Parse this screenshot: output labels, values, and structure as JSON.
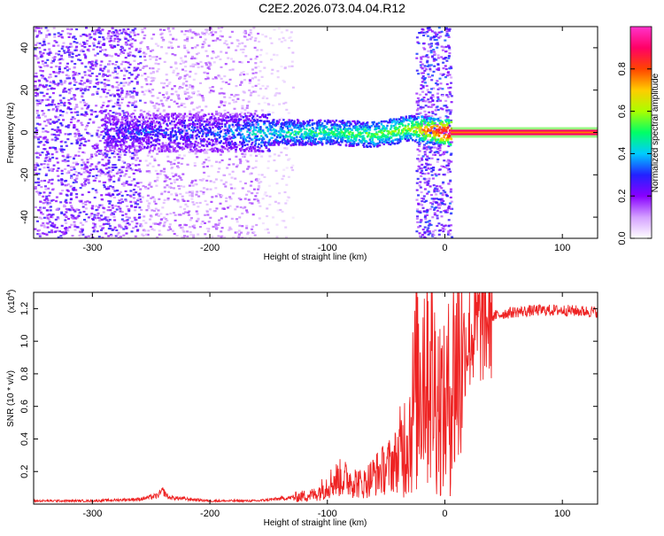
{
  "title": "C2E2.2026.073.04.04.R12",
  "chart_data": [
    {
      "type": "heatmap",
      "panel": "spectrogram",
      "xlabel": "Height of straight line (km)",
      "ylabel": "Frequency (Hz)",
      "xlim": [
        -350,
        130
      ],
      "ylim": [
        -50,
        50
      ],
      "xticks": [
        -300,
        -200,
        -100,
        0,
        100
      ],
      "yticks": [
        -40,
        -20,
        0,
        20,
        40
      ],
      "colorbar": {
        "label": "Normalized spectral amplitude",
        "range": [
          0.0,
          1.0
        ],
        "ticks": [
          "0.0",
          "0.2",
          "0.4",
          "0.6",
          "0.8"
        ],
        "colors": [
          "#ffffff",
          "#d4a0ff",
          "#8800ff",
          "#2222ff",
          "#00ccff",
          "#00ff66",
          "#aaff00",
          "#ffcc00",
          "#ff4400",
          "#ff0066",
          "#ff33cc"
        ]
      },
      "regions": [
        {
          "x": [
            -350,
            -260
          ],
          "kind": "scattered noise",
          "level": 0.35
        },
        {
          "x": [
            -260,
            -160
          ],
          "kind": "scattered noise",
          "level": 0.2
        },
        {
          "x": [
            -160,
            -130
          ],
          "kind": "scattered noise",
          "level": 0.1
        },
        {
          "x": [
            -25,
            5
          ],
          "kind": "dense broadband noise",
          "level": 0.4
        }
      ],
      "signal_band": [
        {
          "x": -290,
          "y": 0,
          "amp": 0.25
        },
        {
          "x": -250,
          "y": 0,
          "amp": 0.3
        },
        {
          "x": -200,
          "y": 0,
          "amp": 0.3
        },
        {
          "x": -150,
          "y": 0,
          "amp": 0.45
        },
        {
          "x": -100,
          "y": 0,
          "amp": 0.5
        },
        {
          "x": -60,
          "y": -1,
          "amp": 0.55
        },
        {
          "x": -30,
          "y": 2,
          "amp": 0.6
        },
        {
          "x": 5,
          "y": 0,
          "amp": 1.0
        },
        {
          "x": 130,
          "y": 0,
          "amp": 1.0
        }
      ]
    },
    {
      "type": "line",
      "panel": "snr",
      "xlabel": "Height of straight line (km)",
      "ylabel": "SNR (10 * v/v)",
      "yscale_label": "(x10",
      "yscale_exp": "4",
      "xlim": [
        -350,
        130
      ],
      "ylim": [
        0,
        1.3
      ],
      "xticks": [
        -300,
        -200,
        -100,
        0,
        100
      ],
      "yticks": [
        "0.2",
        "0.4",
        "0.6",
        "0.8",
        "1.0",
        "1.2"
      ],
      "color": "#ee2222",
      "series": [
        {
          "x": [
            -350,
            -300,
            -260,
            -245,
            -240,
            -235,
            -200,
            -160,
            -130,
            -110,
            -100,
            -90,
            -80,
            -70,
            -60,
            -50,
            -40,
            -30,
            -25,
            -20,
            -15,
            -10,
            -5,
            0,
            5,
            10,
            20,
            30,
            40,
            50,
            60,
            80,
            100,
            130
          ],
          "y": [
            0.02,
            0.02,
            0.03,
            0.05,
            0.08,
            0.04,
            0.02,
            0.02,
            0.04,
            0.06,
            0.12,
            0.16,
            0.15,
            0.12,
            0.18,
            0.22,
            0.28,
            0.45,
            0.7,
            0.85,
            0.95,
            0.75,
            0.65,
            0.55,
            0.72,
            0.9,
            1.02,
            1.1,
            1.15,
            1.17,
            1.18,
            1.19,
            1.19,
            1.18
          ]
        }
      ]
    }
  ]
}
